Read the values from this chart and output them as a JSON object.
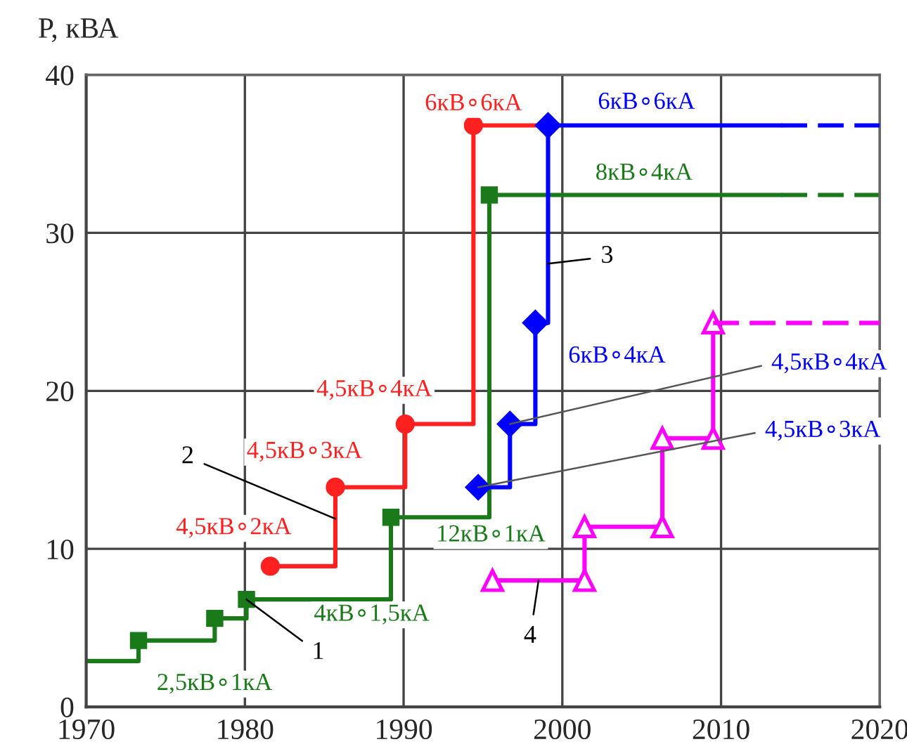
{
  "chart_data": {
    "type": "step",
    "ylabel": "P, кВА",
    "xlim": [
      1970,
      2020
    ],
    "xticks": [
      1970,
      1980,
      1990,
      2000,
      2010,
      2020
    ],
    "ylim": [
      0,
      40
    ],
    "yticks": [
      0,
      10,
      20,
      30,
      40
    ],
    "grid": true,
    "series": [
      {
        "color": "#1a7a1a",
        "line_style": "solid",
        "x": [
          1970,
          1973.3
        ],
        "values": [
          2.9,
          4.2
        ]
      },
      {
        "name": "1",
        "color": "#1a7a1a",
        "marker": "square",
        "line_style": "solid",
        "x": [
          1973.3,
          1978.1,
          1980.1,
          1989.2,
          1995.4
        ],
        "values": [
          4.2,
          5.6,
          6.8,
          12.0,
          32.4
        ]
      },
      {
        "type": "line",
        "color": "#1a7a1a",
        "line_style": "solid",
        "x": [
          1995.4,
          2013.8
        ],
        "values": [
          32.4,
          32.4
        ]
      },
      {
        "type": "line",
        "color": "#1a7a1a",
        "line_style": "dashed",
        "x": [
          2013.8,
          2020
        ],
        "values": [
          32.4,
          32.4
        ]
      },
      {
        "name": "2",
        "color": "#ff2020",
        "marker": "circle",
        "line_style": "solid",
        "x": [
          1981.6,
          1985.7,
          1990.1,
          1994.4
        ],
        "values": [
          8.9,
          13.9,
          17.9,
          36.8
        ]
      },
      {
        "type": "line",
        "color": "#ff2020",
        "line_style": "solid",
        "x": [
          1994.4,
          1999.1
        ],
        "values": [
          36.8,
          36.8
        ]
      },
      {
        "name": "3",
        "color": "#0000ff",
        "marker": "diamond",
        "line_style": "solid",
        "x": [
          1994.7,
          1996.7,
          1998.3,
          1999.1
        ],
        "values": [
          13.9,
          17.9,
          24.3,
          36.8
        ]
      },
      {
        "type": "line",
        "color": "#0000ff",
        "line_style": "solid",
        "x": [
          1999.1,
          2013.8
        ],
        "values": [
          36.8,
          36.8
        ]
      },
      {
        "type": "line",
        "color": "#0000ff",
        "line_style": "dashed",
        "x": [
          2013.8,
          2020
        ],
        "values": [
          36.8,
          36.8
        ]
      },
      {
        "name": "4",
        "type": "line",
        "color": "#ff00ff",
        "marker": "triangle",
        "line_style": "solid",
        "x": [
          1995.6,
          2001.4,
          2001.4,
          2006.3,
          2006.3,
          2009.5,
          2009.5
        ],
        "values": [
          8.0,
          8.0,
          11.4,
          11.4,
          17.0,
          17.0,
          24.3
        ]
      },
      {
        "type": "line",
        "color": "#ff00ff",
        "line_style": "dashed",
        "x": [
          2009.5,
          2020
        ],
        "values": [
          24.3,
          24.3
        ]
      }
    ],
    "annotations": [
      {
        "text": "2,5кВ∘1кА",
        "x": 1973.3,
        "y": 4.2
      },
      {
        "text": "4кВ∘1,5кА",
        "x": 1980.1,
        "y": 6.8
      },
      {
        "text": "12кВ∘1кА",
        "x": 1989.2,
        "y": 12.0
      },
      {
        "text": "8кВ∘4кА",
        "x": 2005.5,
        "y": 32.4
      },
      {
        "text": "4,5кВ∘2кА",
        "x": 1981.6,
        "y": 8.9
      },
      {
        "text": "4,5кВ∘3кА",
        "x": 1985.7,
        "y": 13.9
      },
      {
        "text": "4,5кВ∘4кА",
        "x": 1990.1,
        "y": 17.9
      },
      {
        "text": "6кВ∘6кА",
        "x": 1994.4,
        "y": 36.8
      },
      {
        "text": "4,5кВ∘3кА",
        "x": 1994.7,
        "y": 13.9
      },
      {
        "text": "4,5кВ∘4кА",
        "x": 1996.7,
        "y": 17.9
      },
      {
        "text": "6кВ∘4кА",
        "x": 1998.3,
        "y": 24.3
      },
      {
        "text": "6кВ∘6кА",
        "x": 1999.1,
        "y": 36.8
      }
    ]
  }
}
